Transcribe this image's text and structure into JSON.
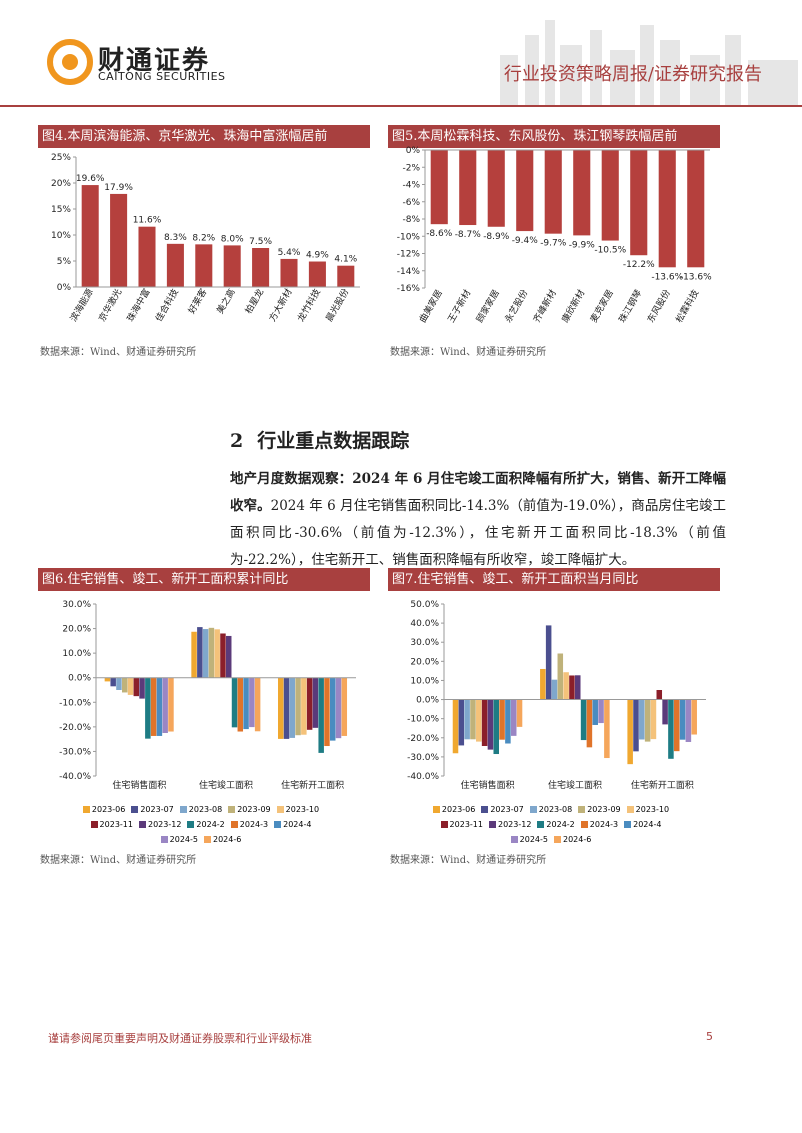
{
  "header": {
    "logo_cn": "财通证券",
    "logo_en": "CAITONG SECURITIES",
    "report_type": "行业投资策略周报/证券研究报告"
  },
  "chart_data": [
    {
      "type": "bar",
      "title": "图4.本周滨海能源、京华激光、珠海中富涨幅居前",
      "categories": [
        "滨海能源",
        "京华激光",
        "珠海中富",
        "佳合科技",
        "好莱客",
        "美之高",
        "柏星龙",
        "方大新材",
        "龙竹科技",
        "晨光股份"
      ],
      "values": [
        19.6,
        17.9,
        11.6,
        8.3,
        8.2,
        8.0,
        7.5,
        5.4,
        4.9,
        4.1
      ],
      "value_labels": [
        "19.6%",
        "17.9%",
        "11.6%",
        "8.3%",
        "8.2%",
        "8.0%",
        "7.5%",
        "5.4%",
        "4.9%",
        "4.1%"
      ],
      "color": "#b5403d",
      "ylim": [
        0,
        25
      ],
      "yticks": [
        {
          "value": 0,
          "label": "0%"
        },
        {
          "value": 5,
          "label": "5%"
        },
        {
          "value": 10,
          "label": "10%"
        },
        {
          "value": 15,
          "label": "15%"
        },
        {
          "value": 20,
          "label": "20%"
        },
        {
          "value": 25,
          "label": "25%"
        }
      ],
      "source": "数据来源：Wind、财通证券研究所"
    },
    {
      "type": "bar",
      "title": "图5.本周松霖科技、东风股份、珠江钢琴跌幅居前",
      "categories": [
        "曲美家居",
        "王子新材",
        "顾家家居",
        "永艺股份",
        "齐峰新材",
        "康欣新材",
        "麦克家居",
        "珠江钢琴",
        "东风股份",
        "松霖科技"
      ],
      "values": [
        -8.6,
        -8.7,
        -8.9,
        -9.4,
        -9.7,
        -9.9,
        -10.5,
        -12.2,
        -13.6,
        -13.6
      ],
      "value_labels": [
        "-8.6%",
        "-8.7%",
        "-8.9%",
        "-9.4%",
        "-9.7%",
        "-9.9%",
        "-10.5%",
        "-12.2%",
        "-13.6%",
        "-13.6%"
      ],
      "color": "#b5403d",
      "ylim": [
        -16,
        0
      ],
      "yticks": [
        {
          "value": 0,
          "label": "0%"
        },
        {
          "value": -2,
          "label": "-2%"
        },
        {
          "value": -4,
          "label": "-4%"
        },
        {
          "value": -6,
          "label": "-6%"
        },
        {
          "value": -8,
          "label": "-8%"
        },
        {
          "value": -10,
          "label": "-10%"
        },
        {
          "value": -12,
          "label": "-12%"
        },
        {
          "value": -14,
          "label": "-14%"
        },
        {
          "value": -16,
          "label": "-16%"
        }
      ],
      "source": "数据来源：Wind、财通证券研究所"
    },
    {
      "type": "grouped_bar",
      "title": "图6.住宅销售、竣工、新开工面积累计同比",
      "categories": [
        "住宅销售面积",
        "住宅竣工面积",
        "住宅新开工面积"
      ],
      "series": [
        {
          "name": "2023-06",
          "color": "#f0a830",
          "values": [
            -1.5,
            18.7,
            -24.9
          ]
        },
        {
          "name": "2023-07",
          "color": "#4b4f8f",
          "values": [
            -3.5,
            20.6,
            -24.9
          ]
        },
        {
          "name": "2023-08",
          "color": "#7fa7cc",
          "values": [
            -5.0,
            19.8,
            -24.5
          ]
        },
        {
          "name": "2023-09",
          "color": "#bfb27a",
          "values": [
            -6.0,
            20.3,
            -23.4
          ]
        },
        {
          "name": "2023-10",
          "color": "#f4c27a",
          "values": [
            -7.0,
            19.7,
            -23.2
          ]
        },
        {
          "name": "2023-11",
          "color": "#8b1f2a",
          "values": [
            -7.5,
            18.0,
            -21.2
          ]
        },
        {
          "name": "2023-12",
          "color": "#5b3a7a",
          "values": [
            -8.5,
            17.0,
            -20.4
          ]
        },
        {
          "name": "2024-2",
          "color": "#1e7c84",
          "values": [
            -24.8,
            -20.2,
            -30.6
          ]
        },
        {
          "name": "2024-3",
          "color": "#e0742a",
          "values": [
            -23.7,
            -21.9,
            -27.8
          ]
        },
        {
          "name": "2024-4",
          "color": "#4a8cc0",
          "values": [
            -23.7,
            -20.9,
            -25.6
          ]
        },
        {
          "name": "2024-5",
          "color": "#9a86c4",
          "values": [
            -22.5,
            -20.1,
            -24.6
          ]
        },
        {
          "name": "2024-6",
          "color": "#f5a65b",
          "values": [
            -21.9,
            -21.8,
            -23.7
          ]
        }
      ],
      "ylim": [
        -40,
        30
      ],
      "yticks": [
        {
          "value": 30,
          "label": "30.0%"
        },
        {
          "value": 20,
          "label": "20.0%"
        },
        {
          "value": 10,
          "label": "10.0%"
        },
        {
          "value": 0,
          "label": "0.0%"
        },
        {
          "value": -10,
          "label": "-10.0%"
        },
        {
          "value": -20,
          "label": "-20.0%"
        },
        {
          "value": -30,
          "label": "-30.0%"
        },
        {
          "value": -40,
          "label": "-40.0%"
        }
      ],
      "legend": "bottom",
      "source": "数据来源：Wind、财通证券研究所"
    },
    {
      "type": "grouped_bar",
      "title": "图7.住宅销售、竣工、新开工面积当月同比",
      "categories": [
        "住宅销售面积",
        "住宅竣工面积",
        "住宅新开工面积"
      ],
      "series": [
        {
          "name": "2023-06",
          "color": "#f0a830",
          "values": [
            -28.1,
            16.0,
            -33.8
          ]
        },
        {
          "name": "2023-07",
          "color": "#4b4f8f",
          "values": [
            -24.0,
            38.8,
            -27.1
          ]
        },
        {
          "name": "2023-08",
          "color": "#7fa7cc",
          "values": [
            -20.8,
            10.4,
            -20.9
          ]
        },
        {
          "name": "2023-09",
          "color": "#bfb27a",
          "values": [
            -20.8,
            24.1,
            -22.0
          ]
        },
        {
          "name": "2023-10",
          "color": "#f4c27a",
          "values": [
            -22.0,
            14.3,
            -20.7
          ]
        },
        {
          "name": "2023-11",
          "color": "#8b1f2a",
          "values": [
            -24.3,
            12.6,
            5.0
          ]
        },
        {
          "name": "2023-12",
          "color": "#5b3a7a",
          "values": [
            -26.2,
            12.7,
            -13.0
          ]
        },
        {
          "name": "2024-2",
          "color": "#1e7c84",
          "values": [
            -28.5,
            -21.2,
            -31.0
          ]
        },
        {
          "name": "2024-3",
          "color": "#e0742a",
          "values": [
            -21.0,
            -25.0,
            -27.0
          ]
        },
        {
          "name": "2024-4",
          "color": "#4a8cc0",
          "values": [
            -23.0,
            -13.3,
            -21.0
          ]
        },
        {
          "name": "2024-5",
          "color": "#9a86c4",
          "values": [
            -19.0,
            -12.3,
            -22.2
          ]
        },
        {
          "name": "2024-6",
          "color": "#f5a65b",
          "values": [
            -14.3,
            -30.6,
            -18.3
          ]
        }
      ],
      "ylim": [
        -40,
        50
      ],
      "yticks": [
        {
          "value": 50,
          "label": "50.0%"
        },
        {
          "value": 40,
          "label": "40.0%"
        },
        {
          "value": 30,
          "label": "30.0%"
        },
        {
          "value": 20,
          "label": "20.0%"
        },
        {
          "value": 10,
          "label": "10.0%"
        },
        {
          "value": 0,
          "label": "0.0%"
        },
        {
          "value": -10,
          "label": "-10.0%"
        },
        {
          "value": -20,
          "label": "-20.0%"
        },
        {
          "value": -30,
          "label": "-30.0%"
        },
        {
          "value": -40,
          "label": "-40.0%"
        }
      ],
      "legend": "bottom",
      "source": "数据来源：Wind、财通证券研究所"
    }
  ],
  "section": {
    "number": "2",
    "title": "行业重点数据跟踪"
  },
  "paragraph": {
    "lead": "地产月度数据观察：2024 年 6 月住宅竣工面积降幅有所扩大，销售、新开工降幅收窄。",
    "body": "2024 年 6 月住宅销售面积同比-14.3%（前值为-19.0%），商品房住宅竣工面积同比-30.6%（前值为-12.3%），住宅新开工面积同比-18.3%（前值为-22.2%），住宅新开工、销售面积降幅有所收窄，竣工降幅扩大。"
  },
  "footer": {
    "disclaimer": "谨请参阅尾页重要声明及财通证券股票和行业评级标准",
    "page": "5"
  }
}
